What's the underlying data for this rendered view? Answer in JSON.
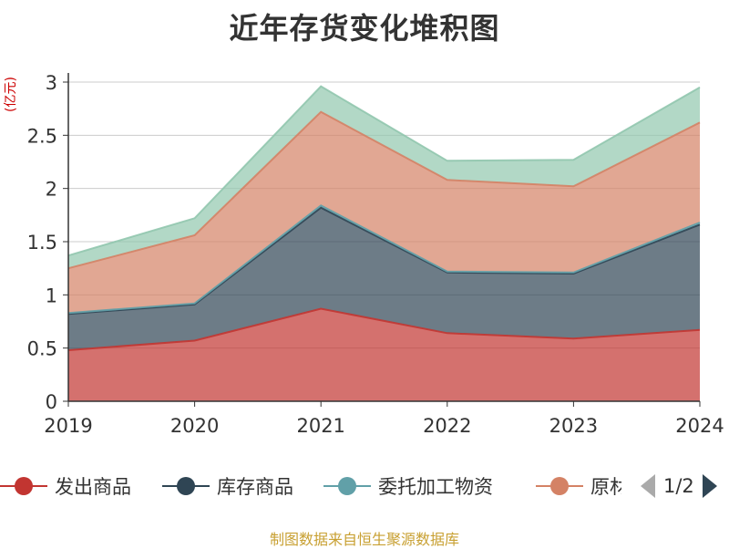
{
  "title": "近年存货变化堆积图",
  "unit_label": "(亿元)",
  "source": "制图数据来自恒生聚源数据库",
  "legend": {
    "page_indicator": "1/2"
  },
  "chart_data": {
    "type": "area",
    "stacked": true,
    "title": "近年存货变化堆积图",
    "ylabel": "(亿元)",
    "x": [
      "2019",
      "2020",
      "2021",
      "2022",
      "2023",
      "2024"
    ],
    "ylim": [
      0,
      3
    ],
    "yticks": [
      "0",
      "0.5",
      "1",
      "1.5",
      "2",
      "2.5",
      "3"
    ],
    "grid": true,
    "legend_position": "bottom",
    "series": [
      {
        "name": "发出商品",
        "color": "#c23531",
        "values": [
          0.48,
          0.57,
          0.87,
          0.64,
          0.59,
          0.67
        ]
      },
      {
        "name": "库存商品",
        "color": "#2f4554",
        "values": [
          0.34,
          0.34,
          0.95,
          0.57,
          0.61,
          0.99
        ]
      },
      {
        "name": "委托加工物资",
        "color": "#61a0a8",
        "values": [
          0.01,
          0.01,
          0.02,
          0.01,
          0.01,
          0.02
        ]
      },
      {
        "name": "原材料",
        "color": "#d48265",
        "values": [
          0.42,
          0.64,
          0.88,
          0.86,
          0.81,
          0.94
        ]
      },
      {
        "color": "#91c7ae",
        "values": [
          0.12,
          0.16,
          0.24,
          0.18,
          0.25,
          0.33
        ]
      }
    ]
  }
}
